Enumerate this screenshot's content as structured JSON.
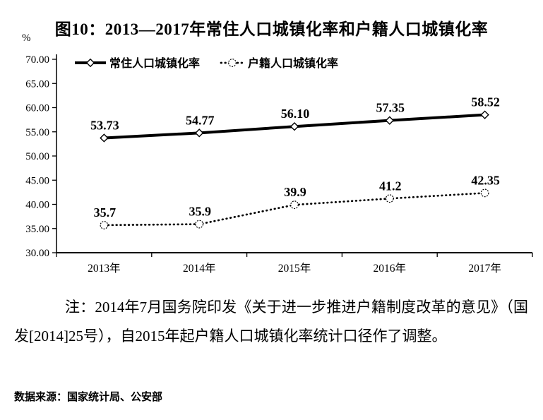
{
  "title": "图10：2013—2017年常住人口城镇化率和户籍人口城镇化率",
  "colors": {
    "line": "#000000",
    "background": "#ffffff",
    "text": "#000000"
  },
  "chart_data": {
    "type": "line",
    "title": "图10：2013—2017年常住人口城镇化率和户籍人口城镇化率",
    "ylabel": "%",
    "xlabel": "",
    "ylim": [
      30,
      70
    ],
    "ytick_step": 5,
    "ytick_labels": [
      "30.00",
      "35.00",
      "40.00",
      "45.00",
      "50.00",
      "55.00",
      "60.00",
      "65.00",
      "70.00"
    ],
    "grid": false,
    "legend_position": "top-inside",
    "categories": [
      "2013年",
      "2014年",
      "2015年",
      "2016年",
      "2017年"
    ],
    "series": [
      {
        "name": "常住人口城镇化率",
        "values": [
          53.73,
          54.77,
          56.1,
          57.35,
          58.52
        ],
        "value_labels": [
          "53.73",
          "54.77",
          "56.10",
          "57.35",
          "58.52"
        ],
        "line_style": "solid",
        "marker": "diamond",
        "color": "#000000"
      },
      {
        "name": "户籍人口城镇化率",
        "values": [
          35.7,
          35.9,
          39.9,
          41.2,
          42.35
        ],
        "value_labels": [
          "35.7",
          "35.9",
          "39.9",
          "41.2",
          "42.35"
        ],
        "line_style": "dotted",
        "marker": "circle",
        "color": "#000000"
      }
    ]
  },
  "note": {
    "text": "注：2014年7月国务院印发《关于进一步推进户籍制度改革的意见》（国发[2014]25号），自2015年起户籍人口城镇化率统计口径作了调整。"
  },
  "source": "数据来源：国家统计局、公安部"
}
